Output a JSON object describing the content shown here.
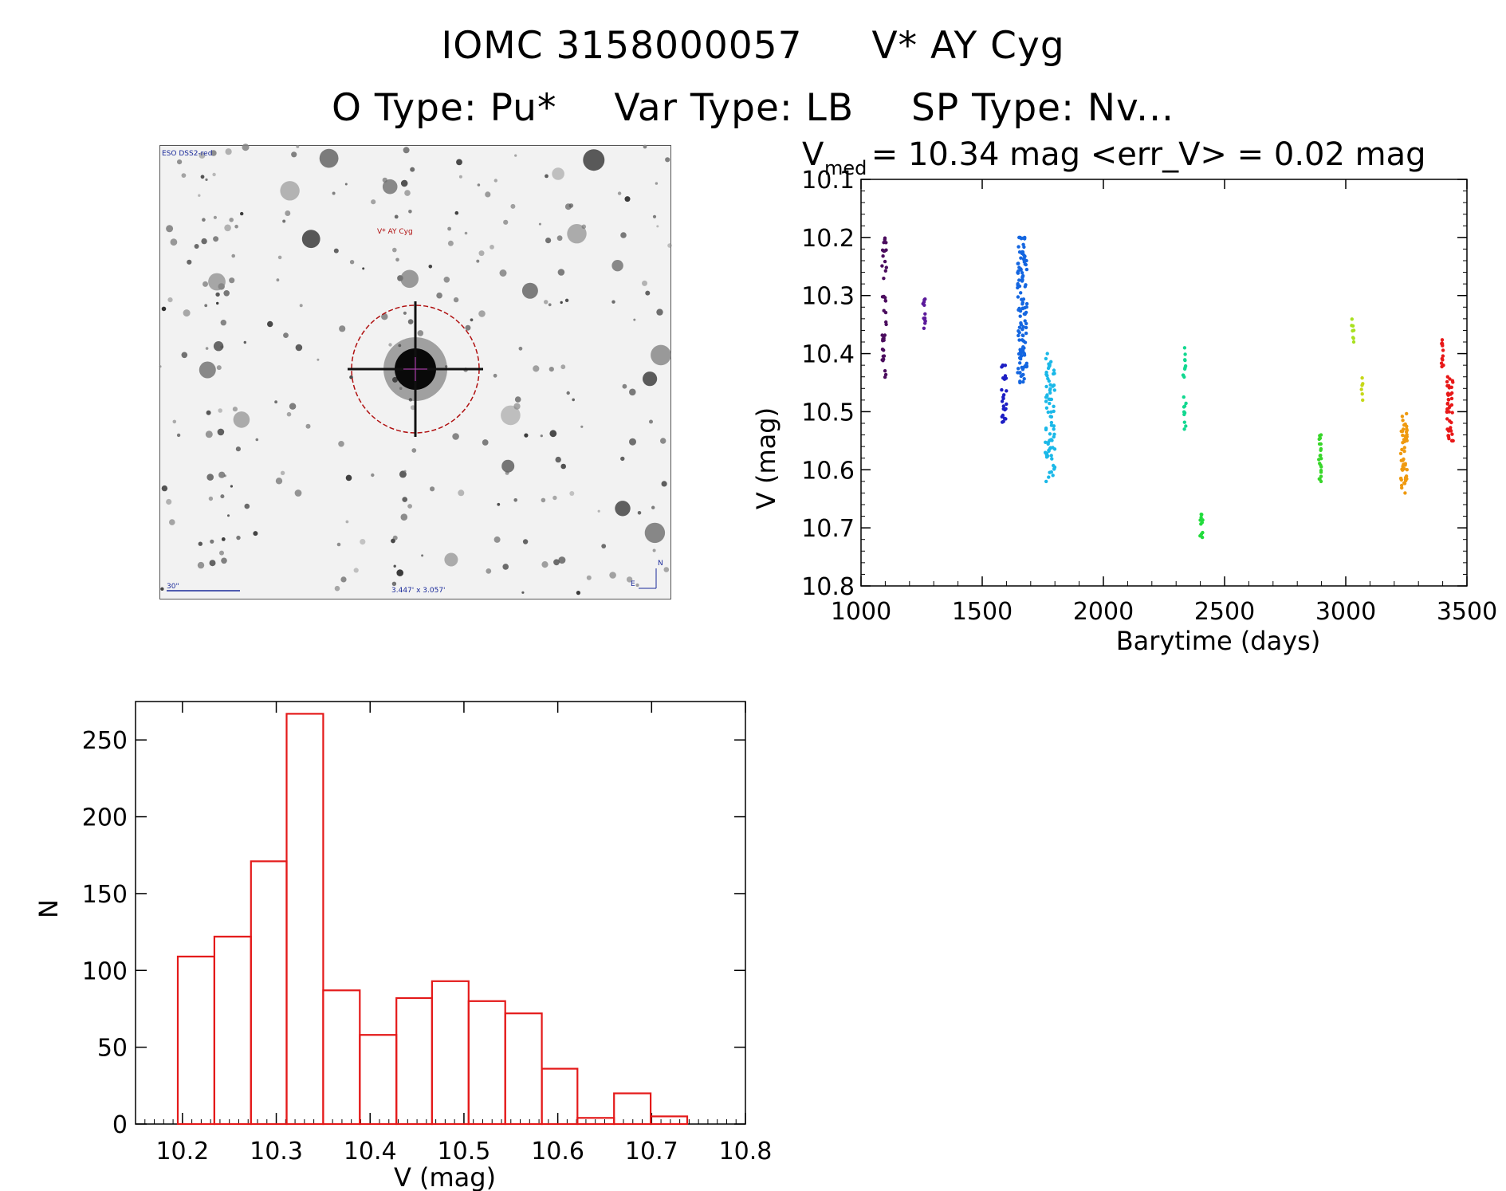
{
  "header": {
    "line1_id": "IOMC 3158000057",
    "line1_name": "V* AY Cyg",
    "line2_otype": "O Type: Pu*",
    "line2_vartype": "Var Type: LB",
    "line2_sptype": "SP Type: Nv..."
  },
  "sky_image": {
    "survey_label": "ESO DSS2-red",
    "target_label": "V* AY Cyg",
    "scale_label": "30\"",
    "fov_label": "3.447' x 3.057'",
    "compass_n": "N",
    "compass_e": "E"
  },
  "chart_data": [
    {
      "type": "scatter",
      "id": "light_curve",
      "title_main": "V",
      "title_sub": "med",
      "title_rest": " = 10.34 mag <err_V> = 0.02 mag",
      "xlabel": "Barytime (days)",
      "ylabel": "V (mag)",
      "xlim": [
        1000,
        3500
      ],
      "ylim": [
        10.8,
        10.1
      ],
      "xticks": [
        "1000",
        "1500",
        "2000",
        "2500",
        "3000",
        "3500"
      ],
      "yticks": [
        "10.1",
        "10.2",
        "10.3",
        "10.4",
        "10.5",
        "10.6",
        "10.7",
        "10.8"
      ],
      "series": [
        {
          "name": "seg1",
          "color": "#4b0d5e",
          "x": 1095,
          "ymin": 10.2,
          "ymax": 10.46,
          "n": 40,
          "spread": 3
        },
        {
          "name": "seg2",
          "color": "#5b1a9a",
          "x": 1260,
          "ymin": 10.3,
          "ymax": 10.36,
          "n": 12,
          "spread": 2
        },
        {
          "name": "seg3",
          "color": "#1d1ec4",
          "x": 1590,
          "ymin": 10.42,
          "ymax": 10.53,
          "n": 25,
          "spread": 3
        },
        {
          "name": "seg4",
          "color": "#1466e0",
          "x": 1665,
          "ymin": 10.2,
          "ymax": 10.45,
          "n": 120,
          "spread": 6
        },
        {
          "name": "seg5",
          "color": "#1ab8e8",
          "x": 1780,
          "ymin": 10.4,
          "ymax": 10.62,
          "n": 80,
          "spread": 6
        },
        {
          "name": "seg6",
          "color": "#12d890",
          "x": 2335,
          "ymin": 10.39,
          "ymax": 10.53,
          "n": 20,
          "spread": 2
        },
        {
          "name": "seg7",
          "color": "#22dc3c",
          "x": 2405,
          "ymin": 10.67,
          "ymax": 10.72,
          "n": 12,
          "spread": 2
        },
        {
          "name": "seg8",
          "color": "#38d62a",
          "x": 2895,
          "ymin": 10.54,
          "ymax": 10.62,
          "n": 22,
          "spread": 2
        },
        {
          "name": "seg9",
          "color": "#a8e020",
          "x": 3030,
          "ymin": 10.34,
          "ymax": 10.38,
          "n": 8,
          "spread": 2
        },
        {
          "name": "seg10",
          "color": "#c6d818",
          "x": 3065,
          "ymin": 10.44,
          "ymax": 10.48,
          "n": 6,
          "spread": 2
        },
        {
          "name": "seg11",
          "color": "#ef9a10",
          "x": 3240,
          "ymin": 10.5,
          "ymax": 10.64,
          "n": 50,
          "spread": 4
        },
        {
          "name": "seg12",
          "color": "#e81818",
          "x": 3400,
          "ymin": 10.37,
          "ymax": 10.43,
          "n": 12,
          "spread": 2
        },
        {
          "name": "seg13",
          "color": "#e81818",
          "x": 3430,
          "ymin": 10.44,
          "ymax": 10.55,
          "n": 45,
          "spread": 4
        }
      ]
    },
    {
      "type": "bar",
      "id": "histogram",
      "xlabel": "V (mag)",
      "ylabel": "N",
      "xlim": [
        10.15,
        10.8
      ],
      "ylim": [
        0,
        275
      ],
      "xticks": [
        "10.2",
        "10.3",
        "10.4",
        "10.5",
        "10.6",
        "10.7",
        "10.8"
      ],
      "yticks": [
        "0",
        "50",
        "100",
        "150",
        "200",
        "250"
      ],
      "bin_edges": [
        10.195,
        10.234,
        10.273,
        10.311,
        10.35,
        10.389,
        10.428,
        10.466,
        10.505,
        10.544,
        10.583,
        10.621,
        10.66,
        10.699,
        10.738
      ],
      "values": [
        109,
        122,
        171,
        267,
        87,
        58,
        82,
        93,
        80,
        72,
        36,
        4,
        20,
        5
      ],
      "color": "#e41a1a"
    }
  ]
}
